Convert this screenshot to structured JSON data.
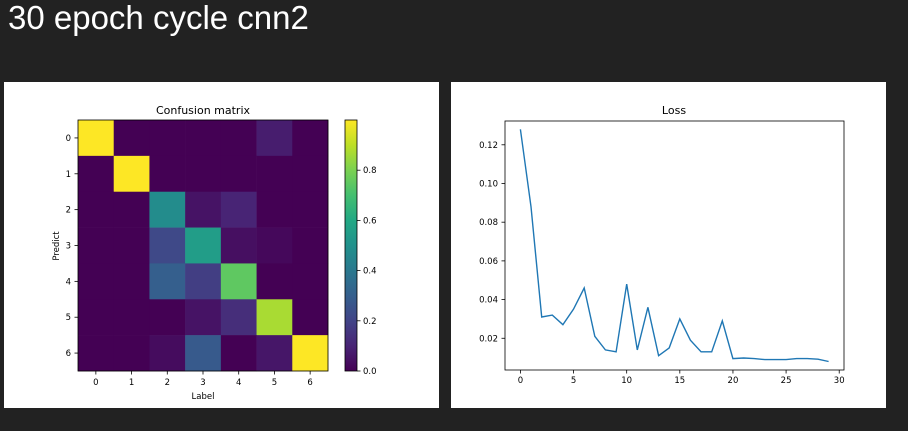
{
  "page": {
    "title": "30 epoch cycle cnn2"
  },
  "colors": {
    "page_bg": "#222222",
    "panel_bg": "#ffffff",
    "line": "#1f77b4"
  },
  "chart_data": [
    {
      "type": "heatmap",
      "title": "Confusion matrix",
      "xlabel": "Label",
      "ylabel": "Predict",
      "x_ticks": [
        "0",
        "1",
        "2",
        "3",
        "4",
        "5",
        "6"
      ],
      "y_ticks": [
        "0",
        "1",
        "2",
        "3",
        "4",
        "5",
        "6"
      ],
      "matrix": [
        [
          1.0,
          0.0,
          0.0,
          0.0,
          0.0,
          0.08,
          0.0
        ],
        [
          0.0,
          1.0,
          0.0,
          0.0,
          0.0,
          0.0,
          0.0
        ],
        [
          0.0,
          0.0,
          0.48,
          0.05,
          0.1,
          0.0,
          0.0
        ],
        [
          0.0,
          0.0,
          0.22,
          0.55,
          0.04,
          0.02,
          0.0
        ],
        [
          0.0,
          0.0,
          0.3,
          0.18,
          0.75,
          0.0,
          0.0
        ],
        [
          0.0,
          0.0,
          0.0,
          0.05,
          0.13,
          0.87,
          0.0
        ],
        [
          0.0,
          0.0,
          0.03,
          0.28,
          0.0,
          0.06,
          1.0
        ]
      ],
      "colorbar": {
        "range": [
          0,
          1
        ],
        "ticks": [
          "0.0",
          "0.2",
          "0.4",
          "0.6",
          "0.8"
        ],
        "colormap": "viridis"
      }
    },
    {
      "type": "line",
      "title": "Loss",
      "x_ticks": [
        "0",
        "5",
        "10",
        "15",
        "20",
        "25",
        "30"
      ],
      "y_ticks": [
        "0.02",
        "0.04",
        "0.06",
        "0.08",
        "0.10",
        "0.12"
      ],
      "xlim": [
        -1.45,
        30.45
      ],
      "ylim": [
        0.0036,
        0.1323
      ],
      "series": [
        {
          "x": [
            0,
            1,
            2,
            3,
            4,
            5,
            6,
            7,
            8,
            9,
            10,
            11,
            12,
            13,
            14,
            15,
            16,
            17,
            18,
            19,
            20,
            21,
            22,
            23,
            24,
            25,
            26,
            27,
            28,
            29
          ],
          "values": [
            0.128,
            0.088,
            0.031,
            0.032,
            0.027,
            0.035,
            0.046,
            0.021,
            0.014,
            0.013,
            0.048,
            0.014,
            0.036,
            0.011,
            0.015,
            0.03,
            0.019,
            0.013,
            0.013,
            0.029,
            0.0095,
            0.0098,
            0.0095,
            0.009,
            0.009,
            0.009,
            0.0095,
            0.0095,
            0.0092,
            0.008
          ]
        }
      ]
    }
  ]
}
